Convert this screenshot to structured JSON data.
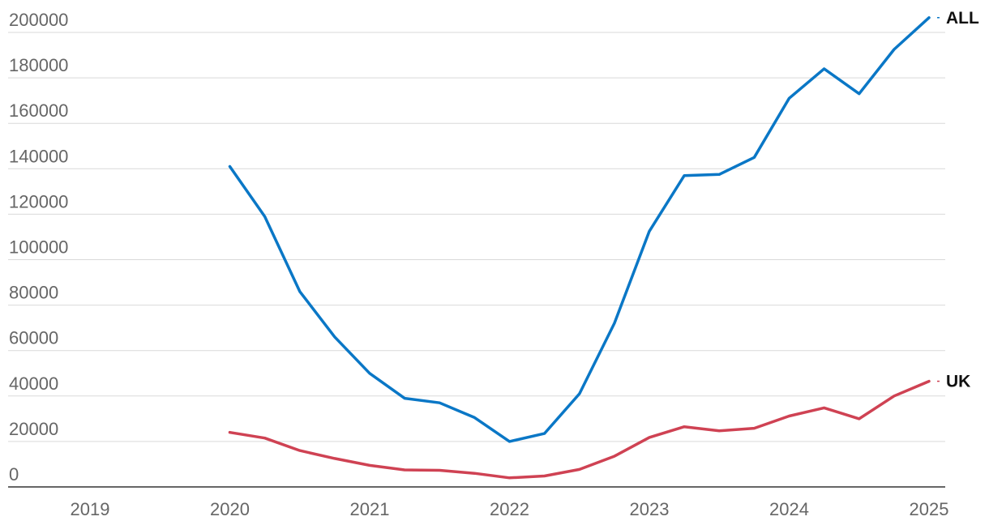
{
  "chart_data": {
    "type": "line",
    "title": "",
    "xlabel": "",
    "ylabel": "",
    "ylim": [
      0,
      200000
    ],
    "xlim": [
      2019,
      2025
    ],
    "grid": true,
    "y_ticks": [
      "0",
      "20000",
      "40000",
      "60000",
      "80000",
      "100000",
      "120000",
      "140000",
      "160000",
      "180000",
      "200000"
    ],
    "x_ticks": [
      "2019",
      "2020",
      "2021",
      "2022",
      "2023",
      "2024",
      "2025"
    ],
    "x": [
      2020.0,
      2020.25,
      2020.5,
      2020.75,
      2021.0,
      2021.25,
      2021.5,
      2021.75,
      2022.0,
      2022.25,
      2022.5,
      2022.75,
      2023.0,
      2023.25,
      2023.5,
      2023.75,
      2024.0,
      2024.25,
      2024.5,
      2024.75,
      2025.0
    ],
    "series": [
      {
        "name": "ALL",
        "color": "#0a77c6",
        "values": [
          141000,
          119000,
          86000,
          66000,
          50000,
          39000,
          37000,
          30500,
          20000,
          23500,
          41000,
          72000,
          112500,
          137000,
          137500,
          145000,
          171000,
          184000,
          173000,
          192500,
          206500
        ]
      },
      {
        "name": "UK",
        "color": "#cf4253",
        "values": [
          24000,
          21500,
          16000,
          12500,
          9500,
          7500,
          7300,
          6000,
          4000,
          4800,
          7700,
          13500,
          21800,
          26500,
          24700,
          25800,
          31200,
          34800,
          30000,
          40000,
          46500
        ]
      }
    ]
  }
}
